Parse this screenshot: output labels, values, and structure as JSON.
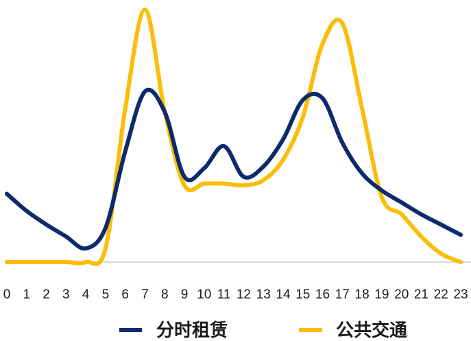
{
  "chart_data": {
    "type": "line",
    "x": [
      "0",
      "1",
      "2",
      "3",
      "4",
      "5",
      "6",
      "7",
      "8",
      "9",
      "10",
      "11",
      "12",
      "13",
      "14",
      "15",
      "16",
      "17",
      "18",
      "19",
      "20",
      "21",
      "22",
      "23"
    ],
    "series": [
      {
        "name": "分时租赁",
        "color": "#0d2a6b",
        "values": [
          40,
          30,
          22,
          15,
          8,
          20,
          65,
          100,
          88,
          50,
          55,
          68,
          50,
          56,
          72,
          95,
          96,
          70,
          52,
          42,
          35,
          28,
          22,
          16
        ]
      },
      {
        "name": "公共交通",
        "color": "#fbbd08",
        "values": [
          0,
          0,
          0,
          0,
          0,
          8,
          90,
          148,
          88,
          45,
          46,
          46,
          45,
          48,
          60,
          85,
          128,
          140,
          90,
          38,
          28,
          15,
          5,
          0
        ]
      }
    ],
    "xlabel": "",
    "ylabel": "",
    "grid": false,
    "legend": "bottom"
  }
}
